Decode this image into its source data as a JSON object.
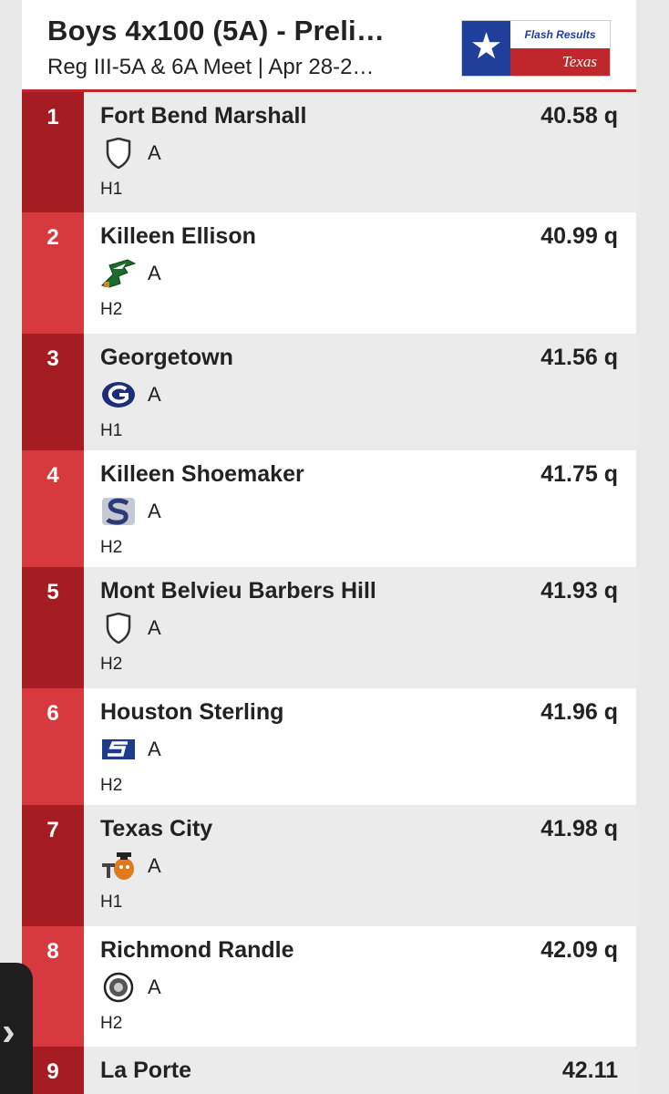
{
  "header": {
    "title": "Boys 4x100 (5A) - Preli…",
    "subtitle": "Reg III-5A & 6A Meet | Apr 28-2…",
    "logo": {
      "top_text": "Flash Results",
      "bottom_text": "Texas",
      "star": "★"
    }
  },
  "colors": {
    "accent_dark": "#a51d22",
    "accent_light": "#d63a3f",
    "flag_blue": "#1f3f9a"
  },
  "results": [
    {
      "rank": "1",
      "team": "Fort Bend Marshall",
      "time": "40.58 q",
      "relay": "A",
      "heat": "H1",
      "icon": "shield-icon"
    },
    {
      "rank": "2",
      "team": "Killeen Ellison",
      "time": "40.99 q",
      "relay": "A",
      "heat": "H2",
      "icon": "eagle-logo-icon"
    },
    {
      "rank": "3",
      "team": "Georgetown",
      "time": "41.56 q",
      "relay": "A",
      "heat": "H1",
      "icon": "g-logo-icon"
    },
    {
      "rank": "4",
      "team": "Killeen Shoemaker",
      "time": "41.75 q",
      "relay": "A",
      "heat": "H2",
      "icon": "s-logo-icon"
    },
    {
      "rank": "5",
      "team": "Mont Belvieu Barbers Hill",
      "time": "41.93 q",
      "relay": "A",
      "heat": "H2",
      "icon": "shield-icon"
    },
    {
      "rank": "6",
      "team": "Houston Sterling",
      "time": "41.96 q",
      "relay": "A",
      "heat": "H2",
      "icon": "s-flag-logo-icon"
    },
    {
      "rank": "7",
      "team": "Texas City",
      "time": "41.98 q",
      "relay": "A",
      "heat": "H1",
      "icon": "mascot-logo-icon"
    },
    {
      "rank": "8",
      "team": "Richmond Randle",
      "time": "42.09 q",
      "relay": "A",
      "heat": "H2",
      "icon": "seal-logo-icon"
    },
    {
      "rank": "9",
      "team": "La Porte",
      "time": "42.11",
      "relay": "",
      "heat": "",
      "icon": ""
    }
  ],
  "side_tab": {
    "icon": "chevron-right-icon",
    "glyph": "›"
  }
}
